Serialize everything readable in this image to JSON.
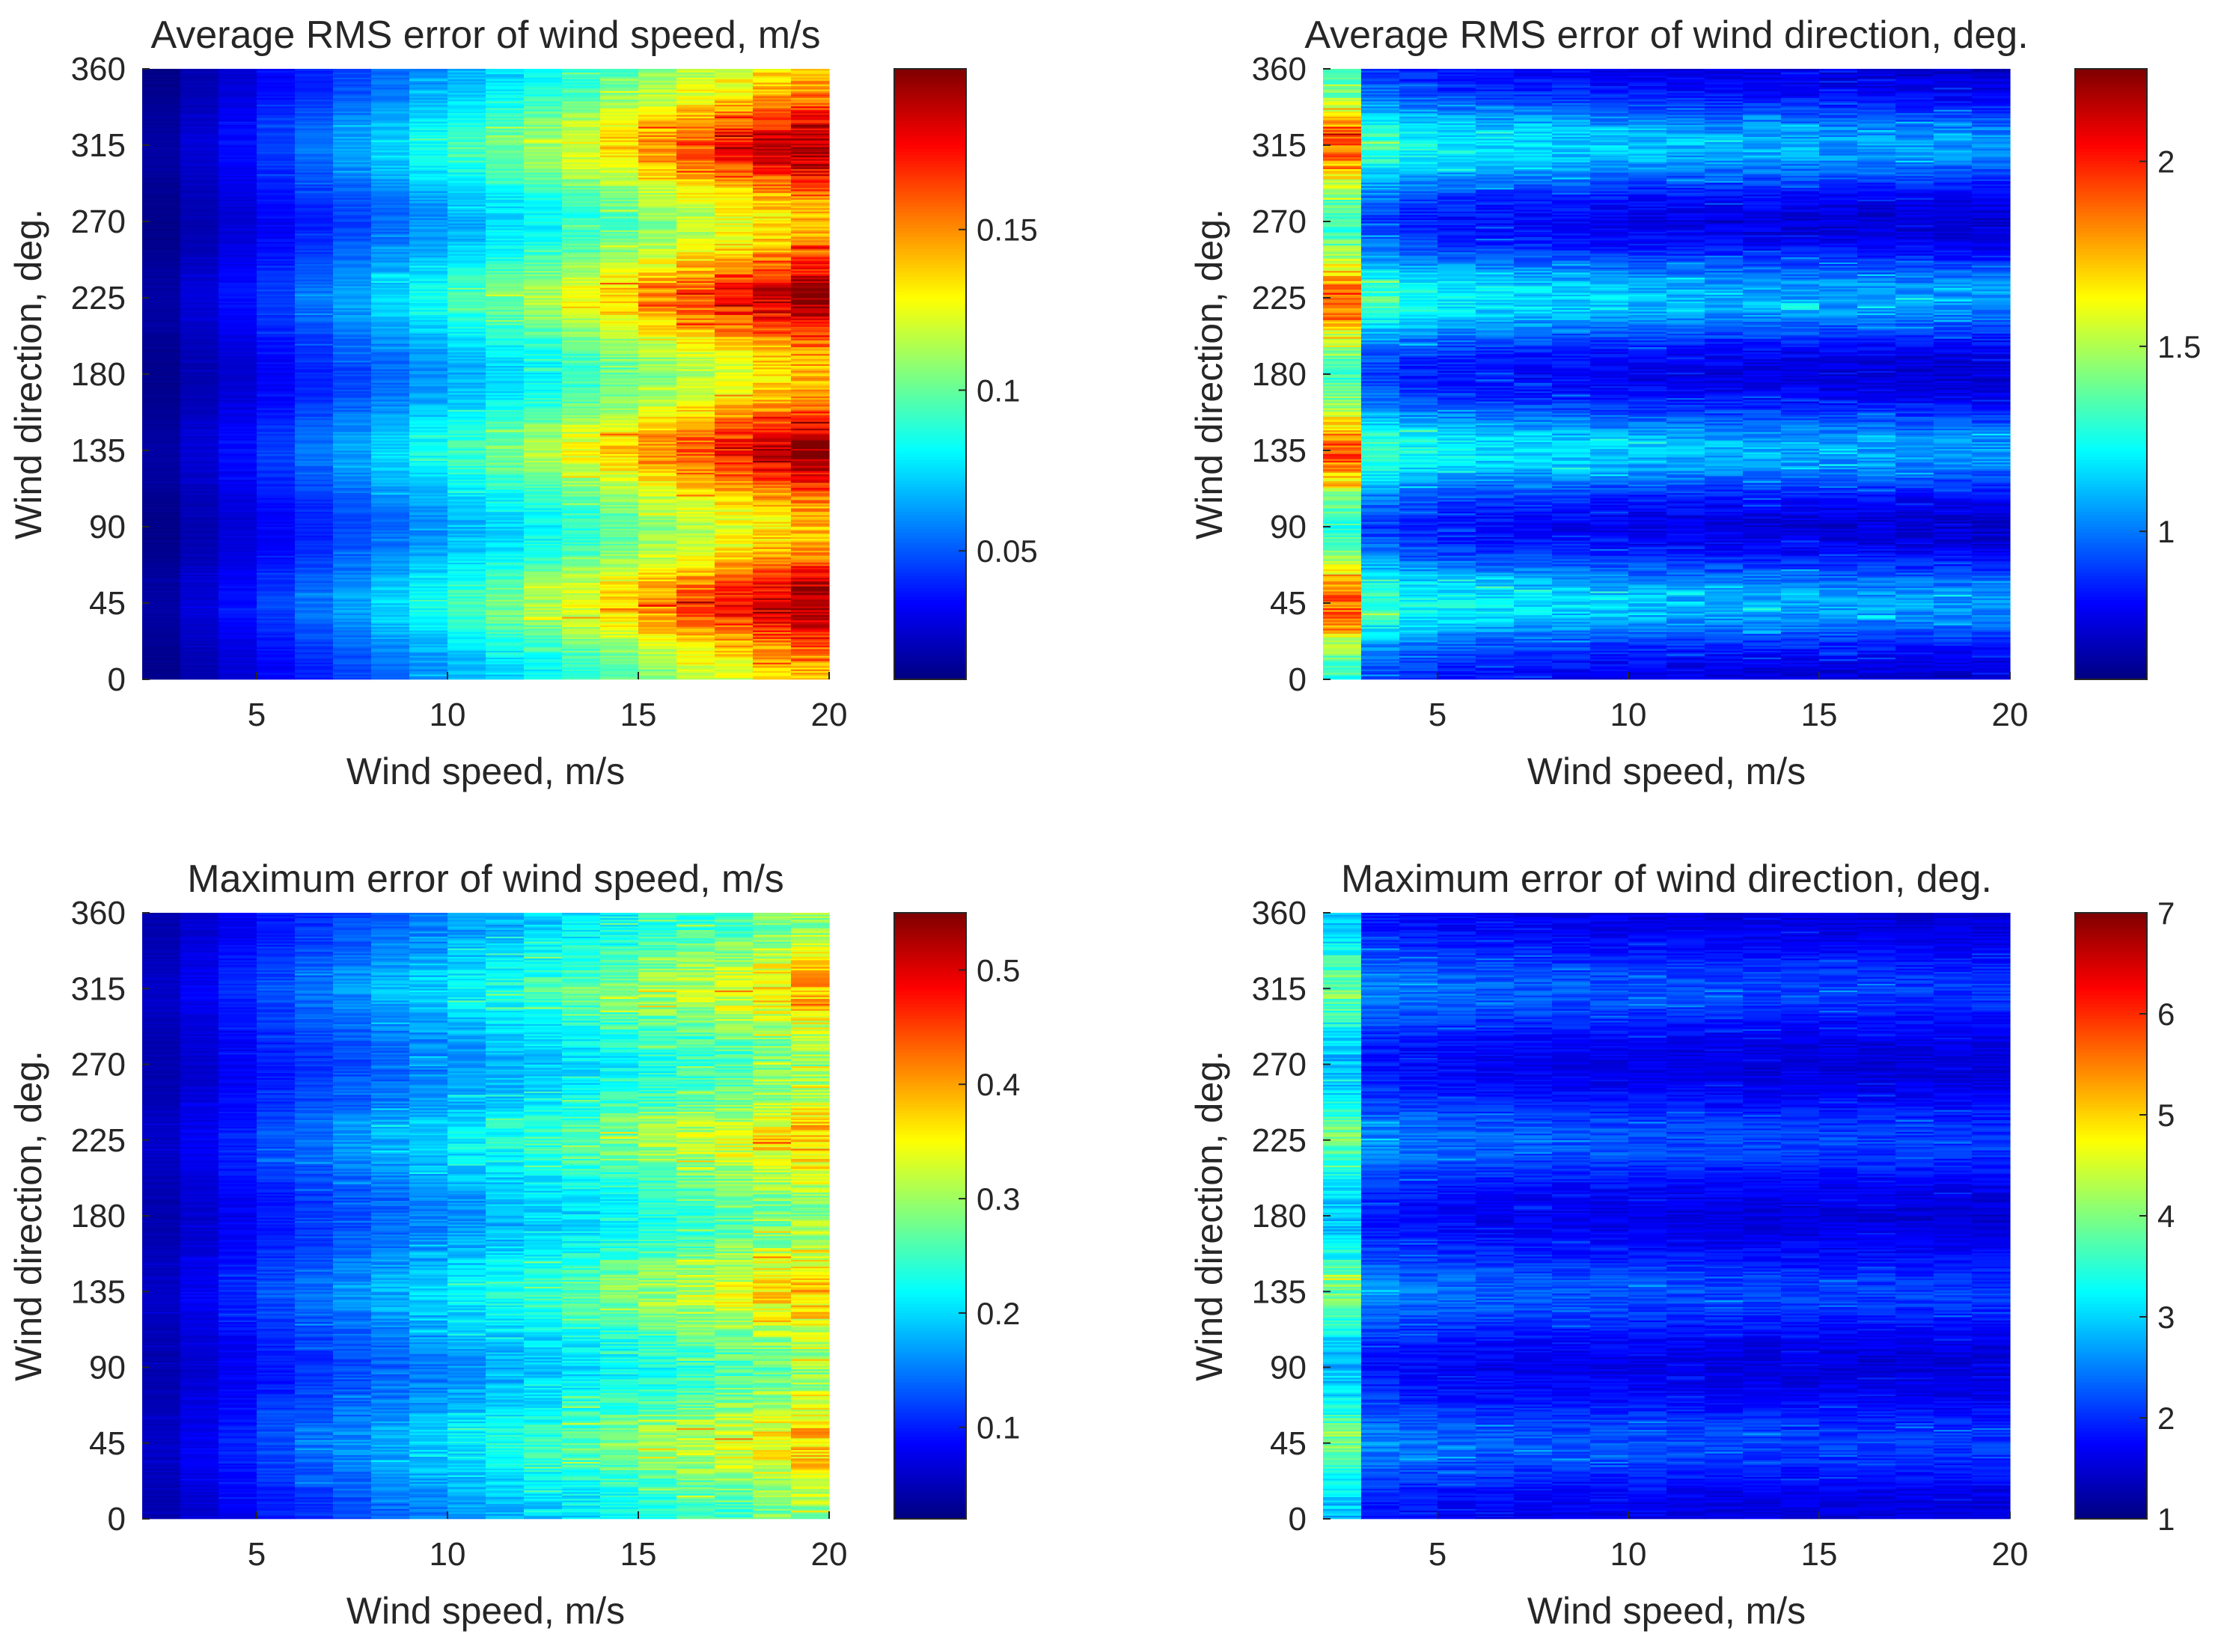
{
  "figure": {
    "background": "#ffffff",
    "text_color": "#262626"
  },
  "chart_data": [
    {
      "type": "heatmap",
      "title": "Average RMS error of wind speed, m/s",
      "xlabel": "Wind speed, m/s",
      "ylabel": "Wind direction, deg.",
      "xlim": [
        2,
        20
      ],
      "ylim": [
        0,
        360
      ],
      "xticks": [
        5,
        10,
        15,
        20
      ],
      "yticks": [
        0,
        45,
        90,
        135,
        180,
        225,
        270,
        315,
        360
      ],
      "x_bins": [
        2,
        3,
        4,
        5,
        6,
        7,
        8,
        9,
        10,
        11,
        12,
        13,
        14,
        15,
        16,
        17,
        18,
        19,
        20
      ],
      "y_bin_width_deg": 1,
      "colormap": "jet",
      "clim": [
        0.01,
        0.2
      ],
      "colorbar_ticks": [
        0.05,
        0.1,
        0.15
      ],
      "mean_by_speed": [
        0.014,
        0.022,
        0.03,
        0.038,
        0.046,
        0.054,
        0.062,
        0.07,
        0.078,
        0.086,
        0.094,
        0.104,
        0.114,
        0.124,
        0.134,
        0.144,
        0.154,
        0.164
      ],
      "direction_peaks_deg": [
        45,
        135,
        225,
        315
      ],
      "direction_modulation": 0.18,
      "noise": 0.09
    },
    {
      "type": "heatmap",
      "title": "Average RMS error of wind direction, deg.",
      "xlabel": "Wind speed, m/s",
      "ylabel": "Wind direction, deg.",
      "xlim": [
        2,
        20
      ],
      "ylim": [
        0,
        360
      ],
      "xticks": [
        5,
        10,
        15,
        20
      ],
      "yticks": [
        0,
        45,
        90,
        135,
        180,
        225,
        270,
        315,
        360
      ],
      "x_bins": [
        2,
        3,
        4,
        5,
        6,
        7,
        8,
        9,
        10,
        11,
        12,
        13,
        14,
        15,
        16,
        17,
        18,
        19,
        20
      ],
      "y_bin_width_deg": 1,
      "colormap": "jet",
      "clim": [
        0.6,
        2.25
      ],
      "colorbar_ticks": [
        1,
        1.5,
        2
      ],
      "mean_by_speed": [
        1.55,
        1.08,
        1.02,
        0.99,
        0.97,
        0.96,
        0.95,
        0.93,
        0.92,
        0.91,
        0.9,
        0.9,
        0.89,
        0.88,
        0.88,
        0.87,
        0.87,
        0.86
      ],
      "direction_peaks_deg": [
        45,
        135,
        225,
        315
      ],
      "direction_modulation": 0.2,
      "noise": 0.08
    },
    {
      "type": "heatmap",
      "title": "Maximum error of wind speed, m/s",
      "xlabel": "Wind speed, m/s",
      "ylabel": "Wind direction, deg.",
      "xlim": [
        2,
        20
      ],
      "ylim": [
        0,
        360
      ],
      "xticks": [
        5,
        10,
        15,
        20
      ],
      "yticks": [
        0,
        45,
        90,
        135,
        180,
        225,
        270,
        315,
        360
      ],
      "x_bins": [
        2,
        3,
        4,
        5,
        6,
        7,
        8,
        9,
        10,
        11,
        12,
        13,
        14,
        15,
        16,
        17,
        18,
        19,
        20
      ],
      "y_bin_width_deg": 1,
      "colormap": "jet",
      "clim": [
        0.02,
        0.55
      ],
      "colorbar_ticks": [
        0.1,
        0.2,
        0.3,
        0.4,
        0.5
      ],
      "mean_by_speed": [
        0.05,
        0.07,
        0.09,
        0.11,
        0.125,
        0.14,
        0.155,
        0.17,
        0.185,
        0.2,
        0.215,
        0.23,
        0.245,
        0.26,
        0.275,
        0.29,
        0.31,
        0.33
      ],
      "direction_peaks_deg": [
        45,
        135,
        225,
        315
      ],
      "direction_modulation": 0.14,
      "noise": 0.13
    },
    {
      "type": "heatmap",
      "title": "Maximum error of wind direction, deg.",
      "xlabel": "Wind speed, m/s",
      "ylabel": "Wind direction, deg.",
      "xlim": [
        2,
        20
      ],
      "ylim": [
        0,
        360
      ],
      "xticks": [
        5,
        10,
        15,
        20
      ],
      "yticks": [
        0,
        45,
        90,
        135,
        180,
        225,
        270,
        315,
        360
      ],
      "x_bins": [
        2,
        3,
        4,
        5,
        6,
        7,
        8,
        9,
        10,
        11,
        12,
        13,
        14,
        15,
        16,
        17,
        18,
        19,
        20
      ],
      "y_bin_width_deg": 1,
      "colormap": "jet",
      "clim": [
        1,
        7
      ],
      "colorbar_ticks": [
        1,
        2,
        3,
        4,
        5,
        6,
        7
      ],
      "mean_by_speed": [
        3.3,
        2.15,
        2.05,
        2.0,
        1.95,
        1.92,
        1.9,
        1.88,
        1.86,
        1.84,
        1.82,
        1.8,
        1.79,
        1.78,
        1.77,
        1.76,
        1.75,
        1.74
      ],
      "direction_peaks_deg": [
        45,
        135,
        225,
        315
      ],
      "direction_modulation": 0.17,
      "noise": 0.11
    }
  ]
}
